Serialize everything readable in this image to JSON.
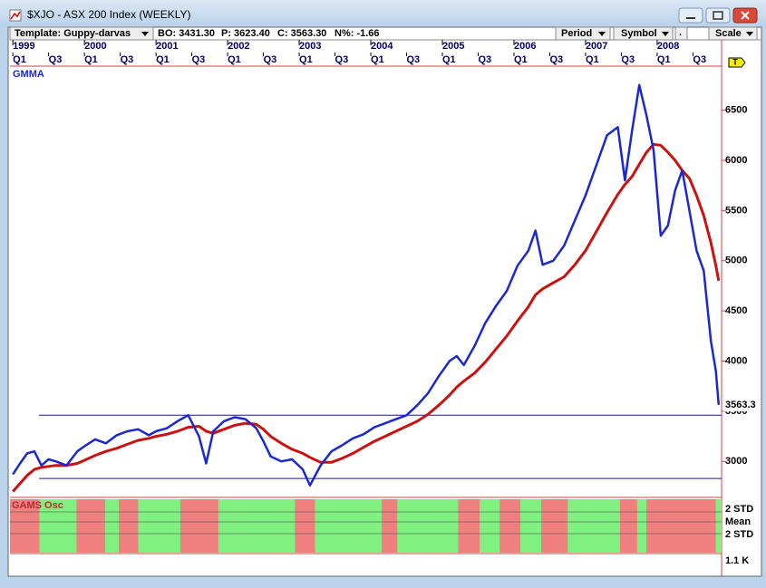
{
  "window": {
    "title": "$XJO - ASX 200 Index (WEEKLY)"
  },
  "toolbar": {
    "template": "Template: Guppy-darvas",
    "bo": "BO: 3431.30",
    "p": "P: 3623.40",
    "c": "C: 3563.30",
    "n": "N%: -1.66",
    "period": "Period",
    "symbol": "Symbol",
    "dot": ".",
    "scale": "Scale",
    "marker": "T"
  },
  "chart_data": {
    "type": "line",
    "title": "GMMA",
    "xlim": [
      1998.96,
      2008.9
    ],
    "year_ticks": [
      {
        "value": 1999,
        "label": "1999"
      },
      {
        "value": 2000,
        "label": "2000"
      },
      {
        "value": 2001,
        "label": "2001"
      },
      {
        "value": 2002,
        "label": "2002"
      },
      {
        "value": 2003,
        "label": "2003"
      },
      {
        "value": 2004,
        "label": "2004"
      },
      {
        "value": 2005,
        "label": "2005"
      },
      {
        "value": 2006,
        "label": "2006"
      },
      {
        "value": 2007,
        "label": "2007"
      },
      {
        "value": 2008,
        "label": "2008"
      }
    ],
    "quarter_ticks": [
      {
        "value": 1999,
        "label": "Q1"
      },
      {
        "value": 1999.5,
        "label": "Q3"
      },
      {
        "value": 2000,
        "label": "Q1"
      },
      {
        "value": 2000.5,
        "label": "Q3"
      },
      {
        "value": 2001,
        "label": "Q1"
      },
      {
        "value": 2001.5,
        "label": "Q3"
      },
      {
        "value": 2002,
        "label": "Q1"
      },
      {
        "value": 2002.5,
        "label": "Q3"
      },
      {
        "value": 2003,
        "label": "Q1"
      },
      {
        "value": 2003.5,
        "label": "Q3"
      },
      {
        "value": 2004,
        "label": "Q1"
      },
      {
        "value": 2004.5,
        "label": "Q3"
      },
      {
        "value": 2005,
        "label": "Q1"
      },
      {
        "value": 2005.5,
        "label": "Q3"
      },
      {
        "value": 2006,
        "label": "Q1"
      },
      {
        "value": 2006.5,
        "label": "Q3"
      },
      {
        "value": 2007,
        "label": "Q1"
      },
      {
        "value": 2007.5,
        "label": "Q3"
      },
      {
        "value": 2008,
        "label": "Q1"
      },
      {
        "value": 2008.5,
        "label": "Q3"
      }
    ],
    "ylim": [
      2650,
      6930
    ],
    "yticks": [
      3000,
      3500,
      4000,
      4500,
      5000,
      5500,
      6000,
      6500
    ],
    "last_price": 3563.3,
    "hlines": [
      3460,
      2830
    ],
    "x": [
      1999.0,
      1999.1,
      1999.2,
      1999.3,
      1999.4,
      1999.5,
      1999.6,
      1999.75,
      1999.9,
      2000.0,
      2000.15,
      2000.3,
      2000.45,
      2000.6,
      2000.75,
      2000.9,
      2001.0,
      2001.15,
      2001.3,
      2001.45,
      2001.6,
      2001.7,
      2001.8,
      2001.95,
      2002.1,
      2002.25,
      2002.4,
      2002.5,
      2002.6,
      2002.75,
      2002.9,
      2003.05,
      2003.15,
      2003.3,
      2003.45,
      2003.6,
      2003.75,
      2003.9,
      2004.05,
      2004.2,
      2004.35,
      2004.5,
      2004.65,
      2004.8,
      2004.95,
      2005.1,
      2005.2,
      2005.3,
      2005.45,
      2005.6,
      2005.75,
      2005.9,
      2006.05,
      2006.2,
      2006.3,
      2006.4,
      2006.55,
      2006.7,
      2006.85,
      2007.0,
      2007.15,
      2007.3,
      2007.45,
      2007.55,
      2007.65,
      2007.75,
      2007.85,
      2007.95,
      2008.05,
      2008.15,
      2008.25,
      2008.35,
      2008.45,
      2008.55,
      2008.65,
      2008.75,
      2008.82,
      2008.86
    ],
    "series": [
      {
        "color": "#cc1111",
        "values": [
          2700,
          2780,
          2860,
          2920,
          2940,
          2950,
          2960,
          2960,
          2980,
          3010,
          3060,
          3100,
          3130,
          3170,
          3210,
          3230,
          3250,
          3270,
          3300,
          3340,
          3350,
          3300,
          3280,
          3320,
          3360,
          3380,
          3370,
          3320,
          3250,
          3180,
          3120,
          3080,
          3040,
          2990,
          2990,
          3030,
          3080,
          3140,
          3200,
          3250,
          3300,
          3350,
          3400,
          3470,
          3560,
          3660,
          3740,
          3800,
          3880,
          3990,
          4120,
          4250,
          4400,
          4540,
          4660,
          4720,
          4780,
          4840,
          4960,
          5100,
          5290,
          5480,
          5660,
          5760,
          5840,
          5960,
          6080,
          6160,
          6150,
          6080,
          6000,
          5900,
          5820,
          5650,
          5450,
          5180,
          4950,
          4800
        ]
      },
      {
        "color": "#1a28d0",
        "values": [
          2870,
          2980,
          3080,
          3100,
          2960,
          3020,
          3000,
          2960,
          3100,
          3150,
          3220,
          3180,
          3260,
          3300,
          3320,
          3260,
          3300,
          3330,
          3400,
          3460,
          3250,
          2980,
          3300,
          3400,
          3440,
          3420,
          3330,
          3200,
          3050,
          3000,
          3020,
          2920,
          2760,
          2960,
          3100,
          3160,
          3230,
          3270,
          3340,
          3380,
          3420,
          3460,
          3560,
          3680,
          3850,
          4000,
          4050,
          3960,
          4150,
          4380,
          4550,
          4700,
          4950,
          5100,
          5300,
          4960,
          5000,
          5150,
          5400,
          5650,
          5950,
          6250,
          6330,
          5800,
          6300,
          6750,
          6450,
          6100,
          5250,
          5350,
          5700,
          5900,
          5500,
          5100,
          4900,
          4200,
          3900,
          3563.3
        ]
      }
    ],
    "osc": {
      "title": "GAMS Osc",
      "upper": "2 STD",
      "mean": "Mean",
      "lower": "2 STD",
      "red_zones": [
        [
          1998.96,
          1999.37
        ],
        [
          1999.89,
          2000.29
        ],
        [
          2000.48,
          2000.75
        ],
        [
          2001.34,
          2001.87
        ],
        [
          2002.94,
          2003.22
        ],
        [
          2004.15,
          2004.37
        ],
        [
          2005.22,
          2005.52
        ],
        [
          2005.8,
          2006.09
        ],
        [
          2006.38,
          2006.75
        ],
        [
          2007.48,
          2007.72
        ],
        [
          2007.85,
          2008.82
        ]
      ]
    },
    "volume": {
      "label": "1.1 K"
    }
  }
}
